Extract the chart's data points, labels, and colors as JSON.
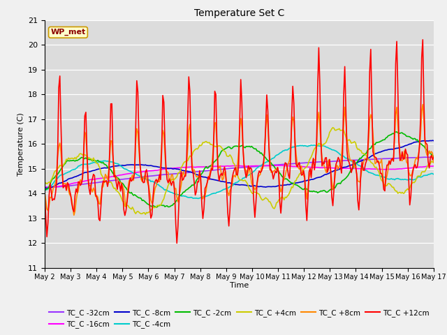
{
  "title": "Temperature Set C",
  "xlabel": "Time",
  "ylabel": "Temperature (C)",
  "ylim": [
    11.0,
    21.0
  ],
  "yticks": [
    11.0,
    12.0,
    13.0,
    14.0,
    15.0,
    16.0,
    17.0,
    18.0,
    19.0,
    20.0,
    21.0
  ],
  "plot_bg": "#dcdcdc",
  "fig_bg": "#f0f0f0",
  "annotation_text": "WP_met",
  "annotation_color": "#8b0000",
  "annotation_bg": "#ffffcc",
  "annotation_edge": "#cc9900",
  "series_colors": {
    "TC_C -32cm": "#9933ff",
    "TC_C -16cm": "#ff00ff",
    "TC_C -8cm": "#0000cc",
    "TC_C -4cm": "#00cccc",
    "TC_C -2cm": "#00bb00",
    "TC_C +4cm": "#cccc00",
    "TC_C +8cm": "#ff8800",
    "TC_C +12cm": "#ff0000"
  },
  "xtick_labels": [
    "May 2",
    "May 3",
    "May 4",
    "May 5",
    "May 6",
    "May 7",
    "May 8",
    "May 9",
    "May 10",
    "May 11",
    "May 12",
    "May 13",
    "May 14",
    "May 15",
    "May 16",
    "May 17"
  ],
  "legend_row1": [
    "TC_C -32cm",
    "TC_C -16cm",
    "TC_C -8cm",
    "TC_C -4cm",
    "TC_C -2cm",
    "TC_C +4cm"
  ],
  "legend_row2": [
    "TC_C +8cm",
    "TC_C +12cm"
  ]
}
